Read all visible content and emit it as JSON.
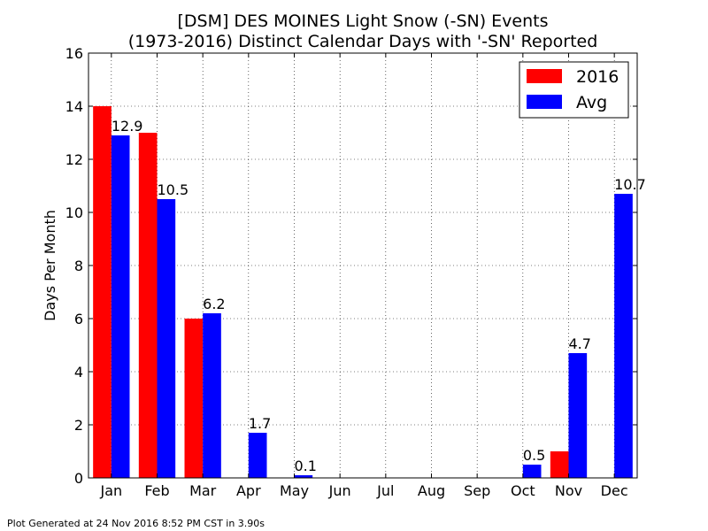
{
  "chart_data": {
    "type": "bar",
    "title_line1": "[DSM] DES MOINES Light Snow (-SN) Events",
    "title_line2": "(1973-2016) Distinct Calendar Days with '-SN' Reported",
    "xlabel": "",
    "ylabel": "Days Per Month",
    "ylim": [
      0,
      16
    ],
    "yticks": [
      0,
      2,
      4,
      6,
      8,
      10,
      12,
      14,
      16
    ],
    "grid": true,
    "legend_position": "top-right",
    "categories": [
      "Jan",
      "Feb",
      "Mar",
      "Apr",
      "May",
      "Jun",
      "Jul",
      "Aug",
      "Sep",
      "Oct",
      "Nov",
      "Dec"
    ],
    "series": [
      {
        "name": "2016",
        "color": "#ff0000",
        "values": [
          14,
          13,
          6,
          0,
          0,
          0,
          0,
          0,
          0,
          0,
          1,
          0
        ]
      },
      {
        "name": "Avg",
        "color": "#0000ff",
        "values": [
          12.9,
          10.5,
          6.2,
          1.7,
          0.1,
          0,
          0,
          0,
          0,
          0.5,
          4.7,
          10.7
        ],
        "labels": [
          "12.9",
          "10.5",
          "6.2",
          "1.7",
          "0.1",
          "",
          "",
          "",
          "",
          "0.5",
          "4.7",
          "10.7"
        ]
      }
    ]
  },
  "footer": "Plot Generated at 24 Nov 2016 8:52 PM CST in 3.90s"
}
